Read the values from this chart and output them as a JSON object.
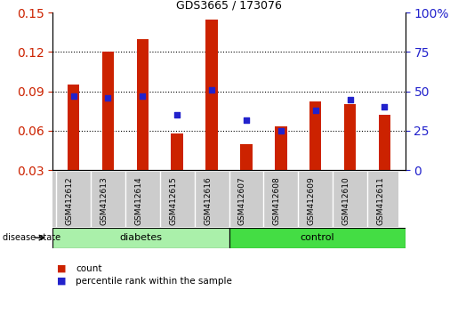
{
  "title": "GDS3665 / 173076",
  "samples": [
    "GSM412612",
    "GSM412613",
    "GSM412614",
    "GSM412615",
    "GSM412616",
    "GSM412607",
    "GSM412608",
    "GSM412609",
    "GSM412610",
    "GSM412611"
  ],
  "count_values": [
    0.095,
    0.12,
    0.13,
    0.058,
    0.145,
    0.05,
    0.063,
    0.082,
    0.08,
    0.072
  ],
  "percentile_values": [
    47,
    46,
    47,
    35,
    51,
    32,
    25,
    38,
    45,
    40
  ],
  "groups": [
    {
      "label": "diabetes",
      "start": 0,
      "end": 5
    },
    {
      "label": "control",
      "start": 5,
      "end": 10
    }
  ],
  "ylim_left": [
    0.03,
    0.15
  ],
  "ylim_right": [
    0,
    100
  ],
  "yticks_left": [
    0.03,
    0.06,
    0.09,
    0.12,
    0.15
  ],
  "yticks_right": [
    0,
    25,
    50,
    75,
    100
  ],
  "ybaseline": 0.03,
  "bar_color": "#CC2200",
  "dot_color": "#2222CC",
  "tick_area_color": "#cccccc",
  "disease_state_label": "disease state",
  "legend_count_label": "count",
  "legend_percentile_label": "percentile rank within the sample",
  "diabetes_color": "#aaf0aa",
  "control_color": "#44dd44"
}
